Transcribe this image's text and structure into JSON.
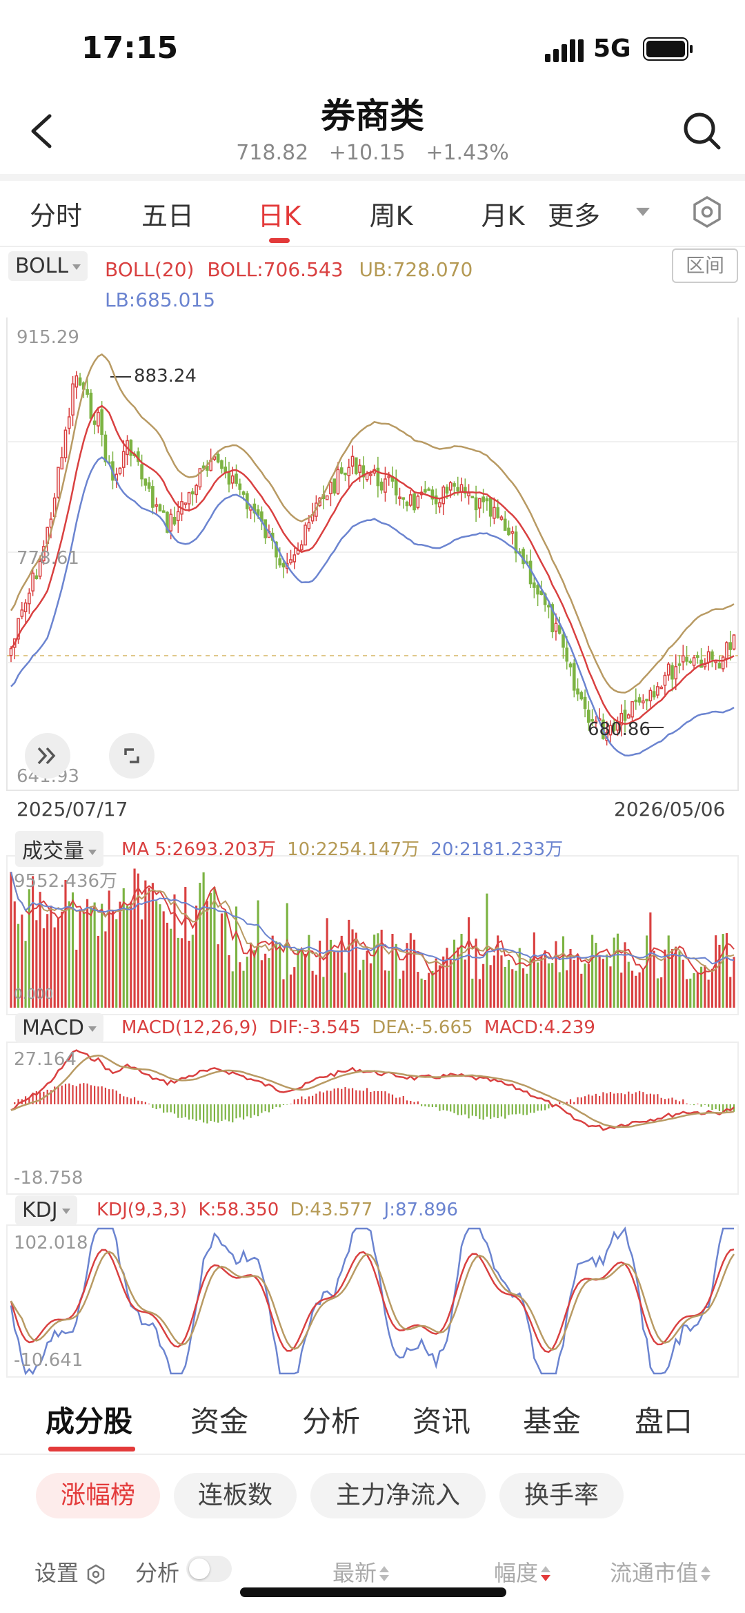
{
  "status_bar": {
    "time": "17:15",
    "network": "5G"
  },
  "header": {
    "title": "券商类",
    "price": "718.82",
    "change": "+10.15",
    "change_pct": "+1.43%"
  },
  "period_tabs": [
    {
      "label": "分时",
      "active": false
    },
    {
      "label": "五日",
      "active": false
    },
    {
      "label": "日K",
      "active": true
    },
    {
      "label": "周K",
      "active": false
    },
    {
      "label": "月K",
      "active": false
    },
    {
      "label": "更多",
      "active": false
    }
  ],
  "boll": {
    "selector": "BOLL",
    "name": "BOLL(20)",
    "mid": "BOLL:706.543",
    "ub": "UB:728.070",
    "lb": "LB:685.015",
    "range_button": "区间"
  },
  "kline_axis": {
    "max": "915.29",
    "mid": "778.61",
    "min": "641.93",
    "high_marker": "883.24",
    "low_marker": "680.86"
  },
  "dates": {
    "start": "2025/07/17",
    "end": "2026/05/06"
  },
  "volume": {
    "selector": "成交量",
    "ma5": "MA 5:2693.203万",
    "ma10": "10:2254.147万",
    "ma20": "20:2181.233万",
    "axis_max": "9552.436万",
    "axis_min": "0.000"
  },
  "macd": {
    "selector": "MACD",
    "name": "MACD(12,26,9)",
    "dif": "DIF:-3.545",
    "dea": "DEA:-5.665",
    "macd": "MACD:4.239",
    "axis_max": "27.164",
    "axis_min": "-18.758"
  },
  "kdj": {
    "selector": "KDJ",
    "name": "KDJ(9,3,3)",
    "k": "K:58.350",
    "d": "D:43.577",
    "j": "J:87.896",
    "axis_max": "102.018",
    "axis_min": "-10.641"
  },
  "bottom_tabs": [
    {
      "label": "成分股",
      "active": true
    },
    {
      "label": "资金",
      "active": false
    },
    {
      "label": "分析",
      "active": false
    },
    {
      "label": "资讯",
      "active": false
    },
    {
      "label": "基金",
      "active": false
    },
    {
      "label": "盘口",
      "active": false
    }
  ],
  "chips": [
    {
      "label": "涨幅榜",
      "active": true
    },
    {
      "label": "连板数",
      "active": false
    },
    {
      "label": "主力净流入",
      "active": false
    },
    {
      "label": "换手率",
      "active": false
    }
  ],
  "columns": {
    "settings": "设置",
    "analysis": "分析",
    "latest": "最新",
    "amplitude": "幅度",
    "market_cap": "流通市值"
  },
  "colors": {
    "up": "#d94040",
    "down": "#7cb342",
    "mid_line": "#d94040",
    "upper_line": "#b89a63",
    "lower_line": "#6b84d0"
  }
}
